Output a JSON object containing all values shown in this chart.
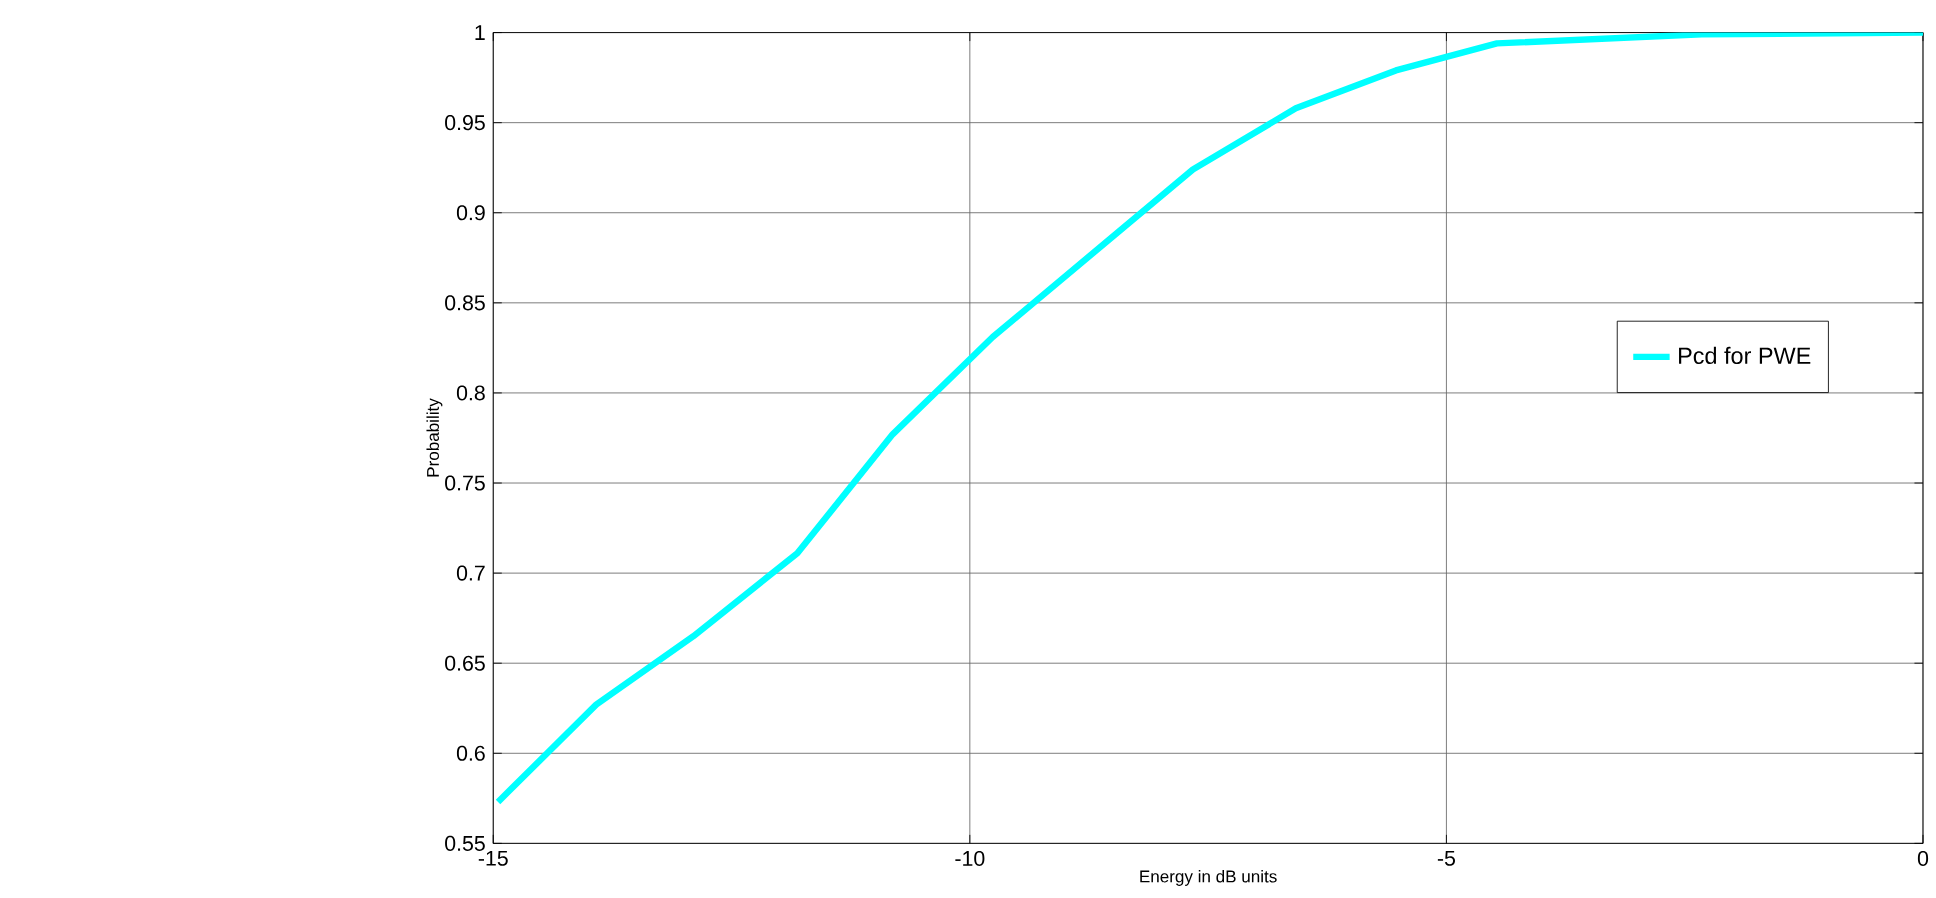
{
  "chart_data": {
    "type": "line",
    "xlabel": "Energy in dB units",
    "ylabel": "Probability",
    "series": [
      {
        "name": "Pcd for PWE",
        "color": "#00ffff",
        "x": [
          -14.95,
          -13.92,
          -12.9,
          -11.81,
          -10.81,
          -9.76,
          -7.66,
          -6.58,
          -5.53,
          -4.47,
          -2.32,
          0
        ],
        "values": [
          0.573,
          0.627,
          0.665,
          0.711,
          0.777,
          0.831,
          0.924,
          0.958,
          0.979,
          0.994,
          0.999,
          1
        ]
      }
    ],
    "xlim": [
      -15,
      0
    ],
    "ylim": [
      0.55,
      1
    ],
    "xticks": [
      -15,
      -10,
      -5,
      0
    ],
    "yticks": [
      0.55,
      0.6,
      0.65,
      0.7,
      0.75,
      0.8,
      0.85,
      0.9,
      0.95,
      1
    ],
    "grid": true,
    "legend": "right",
    "marker": "none",
    "line_style": "solid"
  }
}
